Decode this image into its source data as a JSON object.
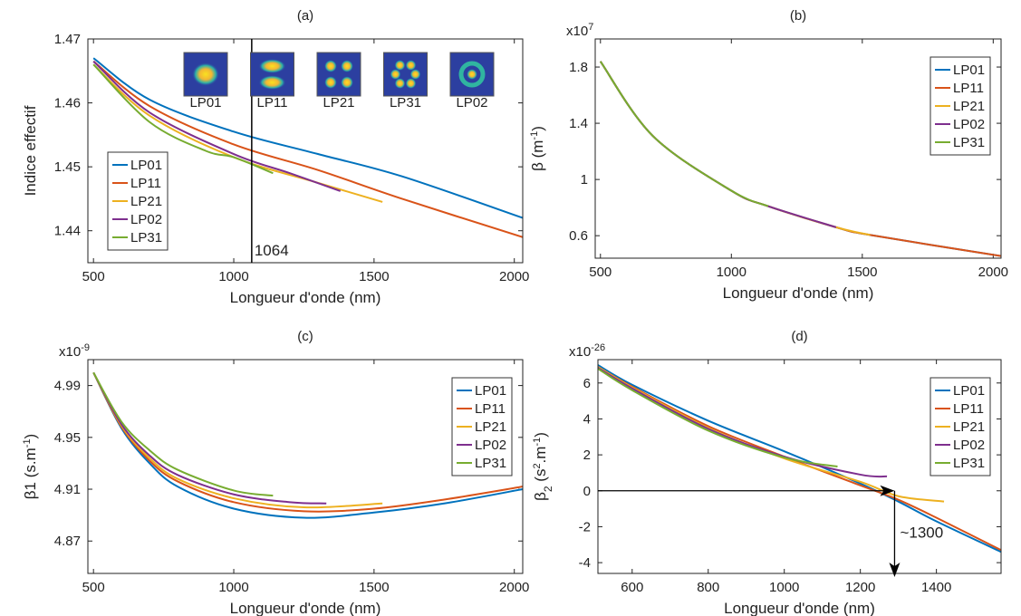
{
  "chart_data": [
    {
      "type": "line",
      "title": "(a)",
      "xlabel": "Longueur d'onde (nm)",
      "ylabel": [
        {
          "text": "Indice effectif"
        }
      ],
      "xlim": [
        480,
        2030
      ],
      "xticks": [
        500,
        1000,
        1500,
        2000
      ],
      "ylim": [
        1.435,
        1.47
      ],
      "yticks": [
        1.44,
        1.45,
        1.46,
        1.47
      ],
      "legend": "lower left",
      "annotation": {
        "text": "1064",
        "x": 1064
      },
      "insets": [
        "LP01",
        "LP11",
        "LP21",
        "LP31",
        "LP02"
      ],
      "series": [
        {
          "name": "LP01",
          "color": "#0072bd",
          "x": [
            500,
            700,
            1000,
            1300,
            1600,
            2030
          ],
          "y": [
            1.467,
            1.4605,
            1.4555,
            1.452,
            1.4485,
            1.442
          ]
        },
        {
          "name": "LP11",
          "color": "#d95319",
          "x": [
            500,
            700,
            1000,
            1300,
            1600,
            2030
          ],
          "y": [
            1.4665,
            1.4595,
            1.4535,
            1.4495,
            1.445,
            1.439
          ]
        },
        {
          "name": "LP21",
          "color": "#edb120",
          "x": [
            500,
            700,
            1000,
            1300,
            1530
          ],
          "y": [
            1.466,
            1.458,
            1.4515,
            1.4475,
            1.4445
          ]
        },
        {
          "name": "LP02",
          "color": "#7e2f8e",
          "x": [
            500,
            700,
            1000,
            1200,
            1380
          ],
          "y": [
            1.4665,
            1.4585,
            1.452,
            1.449,
            1.4462
          ]
        },
        {
          "name": "LP31",
          "color": "#77ac30",
          "x": [
            500,
            700,
            900,
            1000,
            1140
          ],
          "y": [
            1.466,
            1.457,
            1.4525,
            1.4515,
            1.449
          ]
        }
      ]
    },
    {
      "type": "line",
      "title": "(b)",
      "xlabel": "Longueur d'onde (nm)",
      "ylabel": [
        {
          "text": "β (m"
        },
        {
          "text": "-1",
          "shift": "sup"
        },
        {
          "text": ")"
        }
      ],
      "y_multiplier": "x10",
      "y_exponent": "7",
      "xlim": [
        480,
        2030
      ],
      "xticks": [
        500,
        1000,
        1500,
        2000
      ],
      "ylim": [
        0.44,
        2.0
      ],
      "yticks": [
        0.6,
        1,
        1.4,
        1.8
      ],
      "legend": "upper right",
      "series": [
        {
          "name": "LP01",
          "color": "#0072bd",
          "x": [
            500,
            700,
            1000,
            1140,
            1400,
            1530,
            2030
          ],
          "y": [
            1.84,
            1.31,
            0.92,
            0.81,
            0.66,
            0.605,
            0.455
          ]
        },
        {
          "name": "LP11",
          "color": "#d95319",
          "x": [
            500,
            700,
            1000,
            1140,
            1400,
            1530,
            2030
          ],
          "y": [
            1.84,
            1.31,
            0.92,
            0.81,
            0.66,
            0.605,
            0.455
          ]
        },
        {
          "name": "LP21",
          "color": "#edb120",
          "x": [
            500,
            700,
            1000,
            1140,
            1400,
            1530
          ],
          "y": [
            1.84,
            1.31,
            0.92,
            0.81,
            0.66,
            0.605
          ]
        },
        {
          "name": "LP02",
          "color": "#7e2f8e",
          "x": [
            500,
            700,
            1000,
            1140,
            1400
          ],
          "y": [
            1.84,
            1.31,
            0.92,
            0.81,
            0.66
          ]
        },
        {
          "name": "LP31",
          "color": "#77ac30",
          "x": [
            500,
            700,
            1000,
            1140
          ],
          "y": [
            1.84,
            1.31,
            0.92,
            0.81
          ]
        }
      ]
    },
    {
      "type": "line",
      "title": "(c)",
      "xlabel": "Longueur d'onde (nm)",
      "ylabel": [
        {
          "text": "β1 (s.m"
        },
        {
          "text": "-1",
          "shift": "sup"
        },
        {
          "text": ")"
        }
      ],
      "y_multiplier": "x10",
      "y_exponent": "-9",
      "xlim": [
        480,
        2030
      ],
      "xticks": [
        500,
        1000,
        1500,
        2000
      ],
      "ylim": [
        4.845,
        5.01
      ],
      "yticks": [
        4.87,
        4.91,
        4.95,
        4.99
      ],
      "legend": "upper right",
      "series": [
        {
          "name": "LP01",
          "color": "#0072bd",
          "x": [
            500,
            600,
            700,
            800,
            1000,
            1250,
            1500,
            1750,
            2030
          ],
          "y": [
            5.0,
            4.957,
            4.93,
            4.912,
            4.895,
            4.888,
            4.892,
            4.899,
            4.91
          ]
        },
        {
          "name": "LP11",
          "color": "#d95319",
          "x": [
            500,
            600,
            700,
            800,
            1000,
            1250,
            1500,
            1750,
            2030
          ],
          "y": [
            5.0,
            4.958,
            4.932,
            4.916,
            4.9,
            4.893,
            4.895,
            4.902,
            4.912
          ]
        },
        {
          "name": "LP21",
          "color": "#edb120",
          "x": [
            500,
            600,
            700,
            800,
            1000,
            1250,
            1530
          ],
          "y": [
            5.0,
            4.959,
            4.934,
            4.918,
            4.903,
            4.896,
            4.899
          ]
        },
        {
          "name": "LP02",
          "color": "#7e2f8e",
          "x": [
            500,
            600,
            700,
            800,
            1000,
            1200,
            1330
          ],
          "y": [
            5.0,
            4.96,
            4.936,
            4.921,
            4.906,
            4.9,
            4.899
          ]
        },
        {
          "name": "LP31",
          "color": "#77ac30",
          "x": [
            500,
            600,
            700,
            800,
            1000,
            1140
          ],
          "y": [
            5.0,
            4.962,
            4.94,
            4.925,
            4.909,
            4.905
          ]
        }
      ]
    },
    {
      "type": "line",
      "title": "(d)",
      "xlabel": "Longueur d'onde (nm)",
      "ylabel": [
        {
          "text": "β"
        },
        {
          "text": "2",
          "shift": "sub"
        },
        {
          "text": " (s"
        },
        {
          "text": "2",
          "shift": "sup"
        },
        {
          "text": ".m"
        },
        {
          "text": "-1",
          "shift": "sup"
        },
        {
          "text": ")"
        }
      ],
      "y_multiplier": "x10",
      "y_exponent": "-26",
      "xlim": [
        510,
        1570
      ],
      "xticks": [
        600,
        800,
        1000,
        1200,
        1400
      ],
      "ylim": [
        -4.6,
        7.3
      ],
      "yticks": [
        -4,
        -2,
        0,
        2,
        4,
        6
      ],
      "legend": "upper right",
      "annotation": {
        "text": "~1300",
        "x": 1290,
        "y": 0
      },
      "series": [
        {
          "name": "LP01",
          "color": "#0072bd",
          "x": [
            510,
            600,
            800,
            1000,
            1200,
            1300,
            1400,
            1570
          ],
          "y": [
            7.0,
            5.9,
            3.9,
            2.2,
            0.4,
            -0.6,
            -1.7,
            -3.4
          ]
        },
        {
          "name": "LP11",
          "color": "#d95319",
          "x": [
            510,
            600,
            800,
            1000,
            1200,
            1300,
            1400,
            1570
          ],
          "y": [
            6.9,
            5.8,
            3.6,
            1.9,
            0.3,
            -0.5,
            -1.5,
            -3.3
          ]
        },
        {
          "name": "LP21",
          "color": "#edb120",
          "x": [
            510,
            600,
            800,
            1000,
            1200,
            1300,
            1420
          ],
          "y": [
            6.9,
            5.75,
            3.5,
            1.8,
            0.5,
            -0.3,
            -0.6
          ]
        },
        {
          "name": "LP02",
          "color": "#7e2f8e",
          "x": [
            510,
            600,
            800,
            1000,
            1200,
            1270
          ],
          "y": [
            6.85,
            5.7,
            3.45,
            1.9,
            0.9,
            0.8
          ]
        },
        {
          "name": "LP31",
          "color": "#77ac30",
          "x": [
            510,
            600,
            800,
            1000,
            1140
          ],
          "y": [
            6.8,
            5.6,
            3.35,
            1.85,
            1.35
          ]
        }
      ]
    }
  ]
}
